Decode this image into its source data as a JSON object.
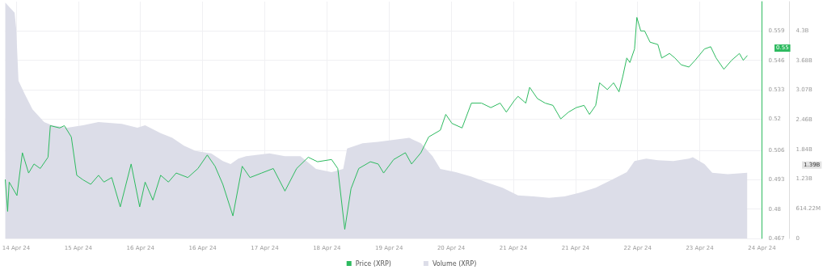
{
  "chart_data": {
    "type": "line",
    "x": [
      "--04-14T06:30",
      "--04-14T07:15",
      "--04-14T07:45",
      "--04-14T10:15",
      "--04-14T12:00",
      "--04-14T14:00",
      "--04-14T15:45",
      "--04-14T17:45",
      "--04-14T20:15",
      "--04-14T21:00",
      "--04-15T00:00",
      "--04-15T01:30",
      "--04-15T03:45",
      "--04-15T05:30",
      "--04-15T07:30",
      "--04-15T10:00",
      "--04-15T12:30",
      "--04-15T14:15",
      "--04-15T16:45",
      "--04-15T19:30",
      "--04-15T23:00",
      "--04-16T01:45",
      "--04-16T03:30",
      "--04-16T06:00",
      "--04-16T08:30",
      "--04-16T11:00",
      "--04-16T13:30",
      "--04-16T17:15",
      "--04-16T20:30",
      "--04-16T23:30",
      "--04-17T02:00",
      "--04-17T04:30",
      "--04-17T07:45",
      "--04-17T10:45",
      "--04-17T13:15",
      "--04-17T17:00",
      "--04-17T20:45",
      "--04-18T00:30",
      "--04-18T04:15",
      "--04-18T08:00",
      "--04-18T11:00",
      "--04-18T15:30",
      "--04-18T17:30",
      "--04-18T19:45",
      "--04-18T21:45",
      "--04-19T00:15",
      "--04-19T04:00",
      "--04-19T06:30",
      "--04-19T08:15",
      "--04-19T11:30",
      "--04-19T15:15",
      "--04-19T17:15",
      "--04-19T20:15",
      "--04-19T22:45",
      "--04-20T02:30",
      "--04-20T04:15",
      "--04-20T06:15",
      "--04-20T09:30",
      "--04-20T12:30",
      "--04-20T15:45",
      "--04-20T18:45",
      "--04-20T21:45",
      "--04-20T23:45",
      "--04-21T02:15",
      "--04-21T03:30",
      "--04-21T06:00",
      "--04-21T07:15",
      "--04-21T09:45",
      "--04-21T12:15",
      "--04-21T14:45",
      "--04-21T17:15",
      "--04-21T19:45",
      "--04-21T22:15",
      "--04-22T00:45",
      "--04-22T02:30",
      "--04-22T04:30",
      "--04-22T05:45",
      "--04-22T08:15",
      "--04-22T10:15",
      "--04-22T12:00",
      "--04-22T13:15",
      "--04-22T14:30",
      "--04-22T15:30",
      "--04-22T17:00",
      "--04-22T17:45",
      "--04-22T19:00",
      "--04-22T20:15",
      "--04-22T22:00",
      "--04-23T00:30",
      "--04-23T01:45",
      "--04-23T04:15",
      "--04-23T06:00",
      "--04-23T08:00",
      "--04-23T10:30",
      "--04-23T12:30",
      "--04-23T15:30",
      "--04-23T17:30",
      "--04-23T19:15",
      "--04-23T21:45",
      "--04-24T00:15",
      "--04-24T02:45",
      "--04-24T04:00",
      "--04-24T05:15"
    ],
    "series": [
      {
        "name": "Price (XRP)",
        "color": "#2dba5f",
        "axis": "y",
        "values": [
          0.493,
          0.479,
          0.492,
          0.486,
          0.505,
          0.496,
          0.5,
          0.498,
          0.503,
          0.517,
          0.516,
          0.517,
          0.512,
          0.495,
          0.493,
          0.491,
          0.495,
          0.492,
          0.494,
          0.481,
          0.5,
          0.481,
          0.492,
          0.484,
          0.495,
          0.492,
          0.496,
          0.494,
          0.498,
          0.504,
          0.499,
          0.491,
          0.477,
          0.499,
          0.494,
          0.496,
          0.498,
          0.488,
          0.498,
          0.503,
          0.501,
          0.502,
          0.498,
          0.471,
          0.489,
          0.498,
          0.501,
          0.5,
          0.496,
          0.502,
          0.505,
          0.5,
          0.505,
          0.512,
          0.515,
          0.522,
          0.518,
          0.516,
          0.527,
          0.527,
          0.525,
          0.527,
          0.523,
          0.528,
          0.53,
          0.527,
          0.534,
          0.529,
          0.527,
          0.526,
          0.52,
          0.523,
          0.525,
          0.526,
          0.522,
          0.526,
          0.536,
          0.533,
          0.536,
          0.532,
          0.539,
          0.547,
          0.545,
          0.551,
          0.565,
          0.559,
          0.559,
          0.554,
          0.553,
          0.547,
          0.549,
          0.547,
          0.544,
          0.543,
          0.546,
          0.551,
          0.552,
          0.547,
          0.542,
          0.546,
          0.549,
          0.546,
          0.548
        ]
      },
      {
        "name": "Volume (XRP)",
        "color": "#dcdde8",
        "type": "area",
        "axis": "y2",
        "x": [
          "--04-14T06:30",
          "--04-14T09:30",
          "--04-14T10:00",
          "--04-14T10:45",
          "--04-14T12:45",
          "--04-14T15:15",
          "--04-14T19:00",
          "--04-14T21:30",
          "--04-15T02:30",
          "--04-15T07:30",
          "--04-15T12:30",
          "--04-15T20:00",
          "--04-16T01:00",
          "--04-16T03:30",
          "--04-16T08:30",
          "--04-16T12:15",
          "--04-16T16:00",
          "--04-16T19:45",
          "--04-17T00:45",
          "--04-17T04:30",
          "--04-17T07:00",
          "--04-17T09:30",
          "--04-17T12:00",
          "--04-17T19:30",
          "--04-18T00:30",
          "--04-18T05:30",
          "--04-18T10:30",
          "--04-18T15:30",
          "--04-18T19:15",
          "--04-18T20:30",
          "--04-19T01:30",
          "--04-19T06:30",
          "--04-19T16:30",
          "--04-19T20:15",
          "--04-20T00:00",
          "--04-20T02:30",
          "--04-20T07:30",
          "--04-20T12:30",
          "--04-20T17:30",
          "--04-20T22:30",
          "--04-21T03:30",
          "--04-21T08:30",
          "--04-21T13:30",
          "--04-21T18:30",
          "--04-21T23:30",
          "--04-22T04:30",
          "--04-22T09:30",
          "--04-22T14:30",
          "--04-22T17:00",
          "--04-22T20:45",
          "--04-23T00:30",
          "--04-23T05:30",
          "--04-23T10:30",
          "--04-23T11:45",
          "--04-23T15:30",
          "--04-23T18:00",
          "--04-23T23:00",
          "--04-24T05:15"
        ],
        "values": [
          4880000000,
          4670000000,
          4350000000,
          3260000000,
          2990000000,
          2670000000,
          2410000000,
          2340000000,
          2290000000,
          2340000000,
          2410000000,
          2370000000,
          2290000000,
          2340000000,
          2180000000,
          2080000000,
          1920000000,
          1810000000,
          1760000000,
          1600000000,
          1540000000,
          1650000000,
          1700000000,
          1760000000,
          1700000000,
          1700000000,
          1440000000,
          1370000000,
          1440000000,
          1860000000,
          1970000000,
          2000000000,
          2080000000,
          1970000000,
          1700000000,
          1440000000,
          1370000000,
          1280000000,
          1160000000,
          1050000000,
          890000000,
          870000000,
          840000000,
          870000000,
          950000000,
          1050000000,
          1210000000,
          1370000000,
          1600000000,
          1650000000,
          1620000000,
          1600000000,
          1650000000,
          1680000000,
          1540000000,
          1360000000,
          1330000000,
          1360000000
        ]
      }
    ],
    "xlim": [
      "--04-14T06:30",
      "--04-24T10:00"
    ],
    "xticks": [
      {
        "value": "--04-14T10:00",
        "label": "14 Apr 24"
      },
      {
        "value": "--04-15T06:00",
        "label": "15 Apr 24"
      },
      {
        "value": "--04-16T02:00",
        "label": "16 Apr 24"
      },
      {
        "value": "--04-16T22:00",
        "label": "16 Apr 24"
      },
      {
        "value": "--04-17T18:00",
        "label": "17 Apr 24"
      },
      {
        "value": "--04-18T14:00",
        "label": "18 Apr 24"
      },
      {
        "value": "--04-19T10:00",
        "label": "19 Apr 24"
      },
      {
        "value": "--04-20T06:00",
        "label": "20 Apr 24"
      },
      {
        "value": "--04-21T02:00",
        "label": "21 Apr 24"
      },
      {
        "value": "--04-21T22:00",
        "label": "21 Apr 24"
      },
      {
        "value": "--04-22T18:00",
        "label": "22 Apr 24"
      },
      {
        "value": "--04-23T14:00",
        "label": "23 Apr 24"
      },
      {
        "value": "--04-24T10:00",
        "label": "24 Apr 24"
      }
    ],
    "ylim": [
      0.467,
      0.572
    ],
    "yticks": [
      0.467,
      0.48,
      0.493,
      0.506,
      0.52,
      0.533,
      0.546,
      0.559
    ],
    "y2lim": [
      0,
      4900000000
    ],
    "y2ticks": [
      0,
      {
        "value": 614220000,
        "label": "614.22M"
      },
      {
        "value": 1230000000,
        "label": "1.23B"
      },
      {
        "value": 1840000000,
        "label": "1.84B"
      },
      {
        "value": 2460000000,
        "label": "2.46B"
      },
      {
        "value": 3070000000,
        "label": "3.07B"
      },
      {
        "value": 3680000000,
        "label": "3.68B"
      },
      {
        "value": 4300000000,
        "label": "4.3B"
      }
    ],
    "annotations": [
      "0.55",
      "1.39B"
    ],
    "grid": true,
    "legend": "bottom",
    "marker": "none"
  }
}
